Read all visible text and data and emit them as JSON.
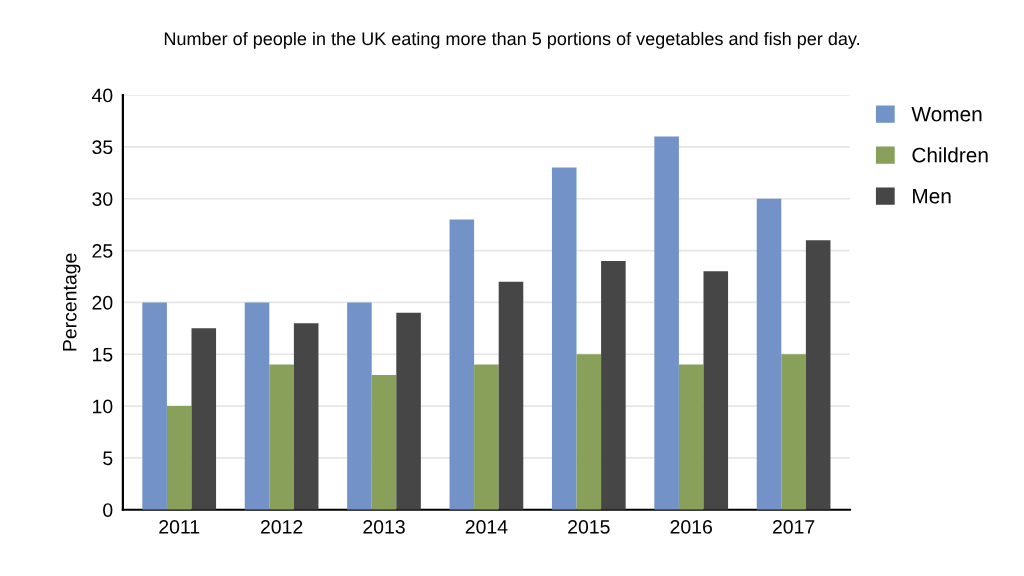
{
  "chart_data": {
    "type": "bar",
    "title": "Number of people in the UK eating more than 5 portions of vegetables and fish per day.",
    "ylabel": "Percentage",
    "categories": [
      "2011",
      "2012",
      "2013",
      "2014",
      "2015",
      "2016",
      "2017"
    ],
    "series": [
      {
        "name": "Women",
        "color": "#7393c8",
        "values": [
          20,
          20,
          20,
          28,
          33,
          36,
          30
        ]
      },
      {
        "name": "Children",
        "color": "#88a05a",
        "values": [
          10,
          14,
          13,
          14,
          15,
          14,
          15
        ]
      },
      {
        "name": "Men",
        "color": "#464646",
        "values": [
          17.5,
          18,
          19,
          22,
          24,
          23,
          26
        ]
      }
    ],
    "ylim": [
      0,
      40
    ],
    "yticks": [
      0,
      5,
      10,
      15,
      20,
      25,
      30,
      35,
      40
    ],
    "grid": "y",
    "legend": "top right"
  }
}
